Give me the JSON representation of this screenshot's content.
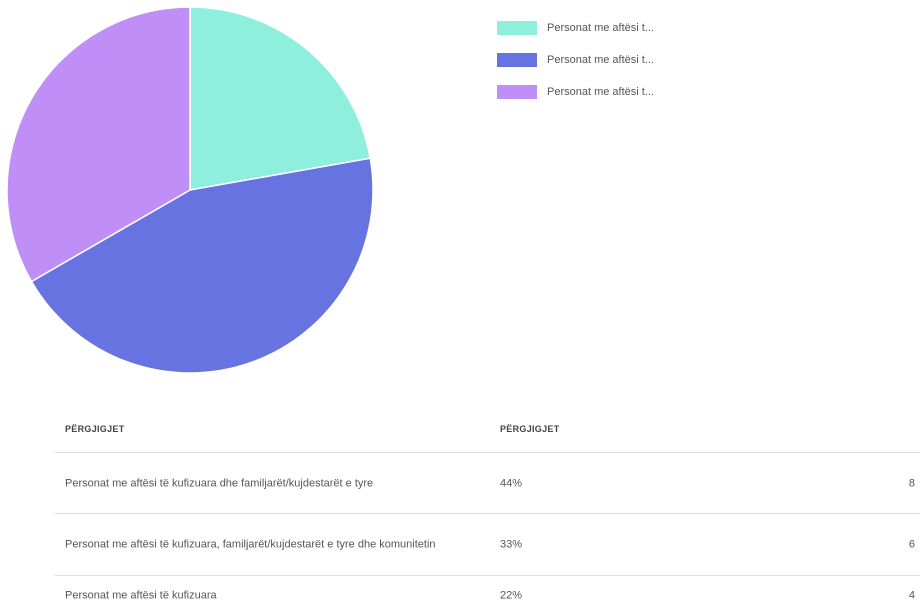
{
  "chart_data": {
    "type": "pie",
    "labels": [
      "Personat me aftësi t...",
      "Personat me aftësi t...",
      "Personat me aftësi t..."
    ],
    "values": [
      4,
      8,
      6
    ],
    "colors": [
      "#8ef0dc",
      "#6673e0",
      "#c08ef7"
    ]
  },
  "table": {
    "header": [
      "PËRGJIGJET",
      "PËRGJIGJET"
    ],
    "rows": [
      [
        "Personat me aftësi të kufizuara dhe familjarët/kujdestarët e tyre",
        "44%",
        "8"
      ],
      [
        "Personat me aftësi të kufizuara, familjarët/kujdestarët e tyre dhe komunitetin",
        "33%",
        "6"
      ],
      [
        "Personat me aftësi të kufizuara",
        "22%",
        "4"
      ]
    ]
  }
}
